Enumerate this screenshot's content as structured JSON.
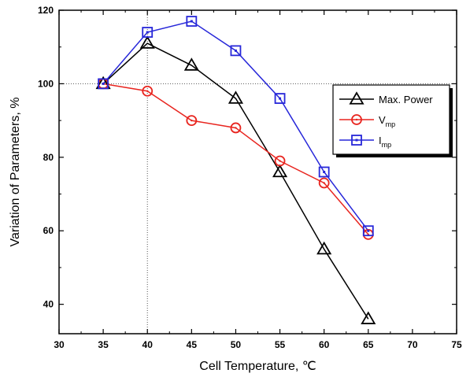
{
  "chart_data": {
    "type": "line",
    "xlabel": "Cell Temperature, ℃",
    "ylabel": "Variation of Parameters, %",
    "xlim": [
      30,
      75
    ],
    "ylim": [
      32,
      120
    ],
    "xticks": [
      30,
      35,
      40,
      45,
      50,
      55,
      60,
      65,
      70,
      75
    ],
    "yticks": [
      40,
      60,
      80,
      100,
      120
    ],
    "reference_lines": {
      "y": 100,
      "x": 40,
      "style": "dotted"
    },
    "grid": false,
    "legend_position": "right",
    "series": [
      {
        "name": "Max. Power",
        "legend_main": "Max. Power",
        "legend_sub": "",
        "marker": "triangle",
        "color": "#000000",
        "x": [
          35,
          40,
          45,
          50,
          55,
          60,
          65
        ],
        "y": [
          100,
          111,
          105,
          96,
          76,
          55,
          36
        ]
      },
      {
        "name": "Vmp",
        "legend_main": "V",
        "legend_sub": "mp",
        "marker": "circle",
        "color": "#e8251f",
        "x": [
          35,
          40,
          45,
          50,
          55,
          60,
          65
        ],
        "y": [
          100,
          98,
          90,
          88,
          79,
          73,
          59
        ]
      },
      {
        "name": "Imp",
        "legend_main": "I",
        "legend_sub": "mp",
        "marker": "square",
        "color": "#2727d9",
        "x": [
          35,
          40,
          45,
          50,
          55,
          60,
          65
        ],
        "y": [
          100,
          114,
          117,
          109,
          96,
          76,
          60
        ]
      }
    ]
  }
}
